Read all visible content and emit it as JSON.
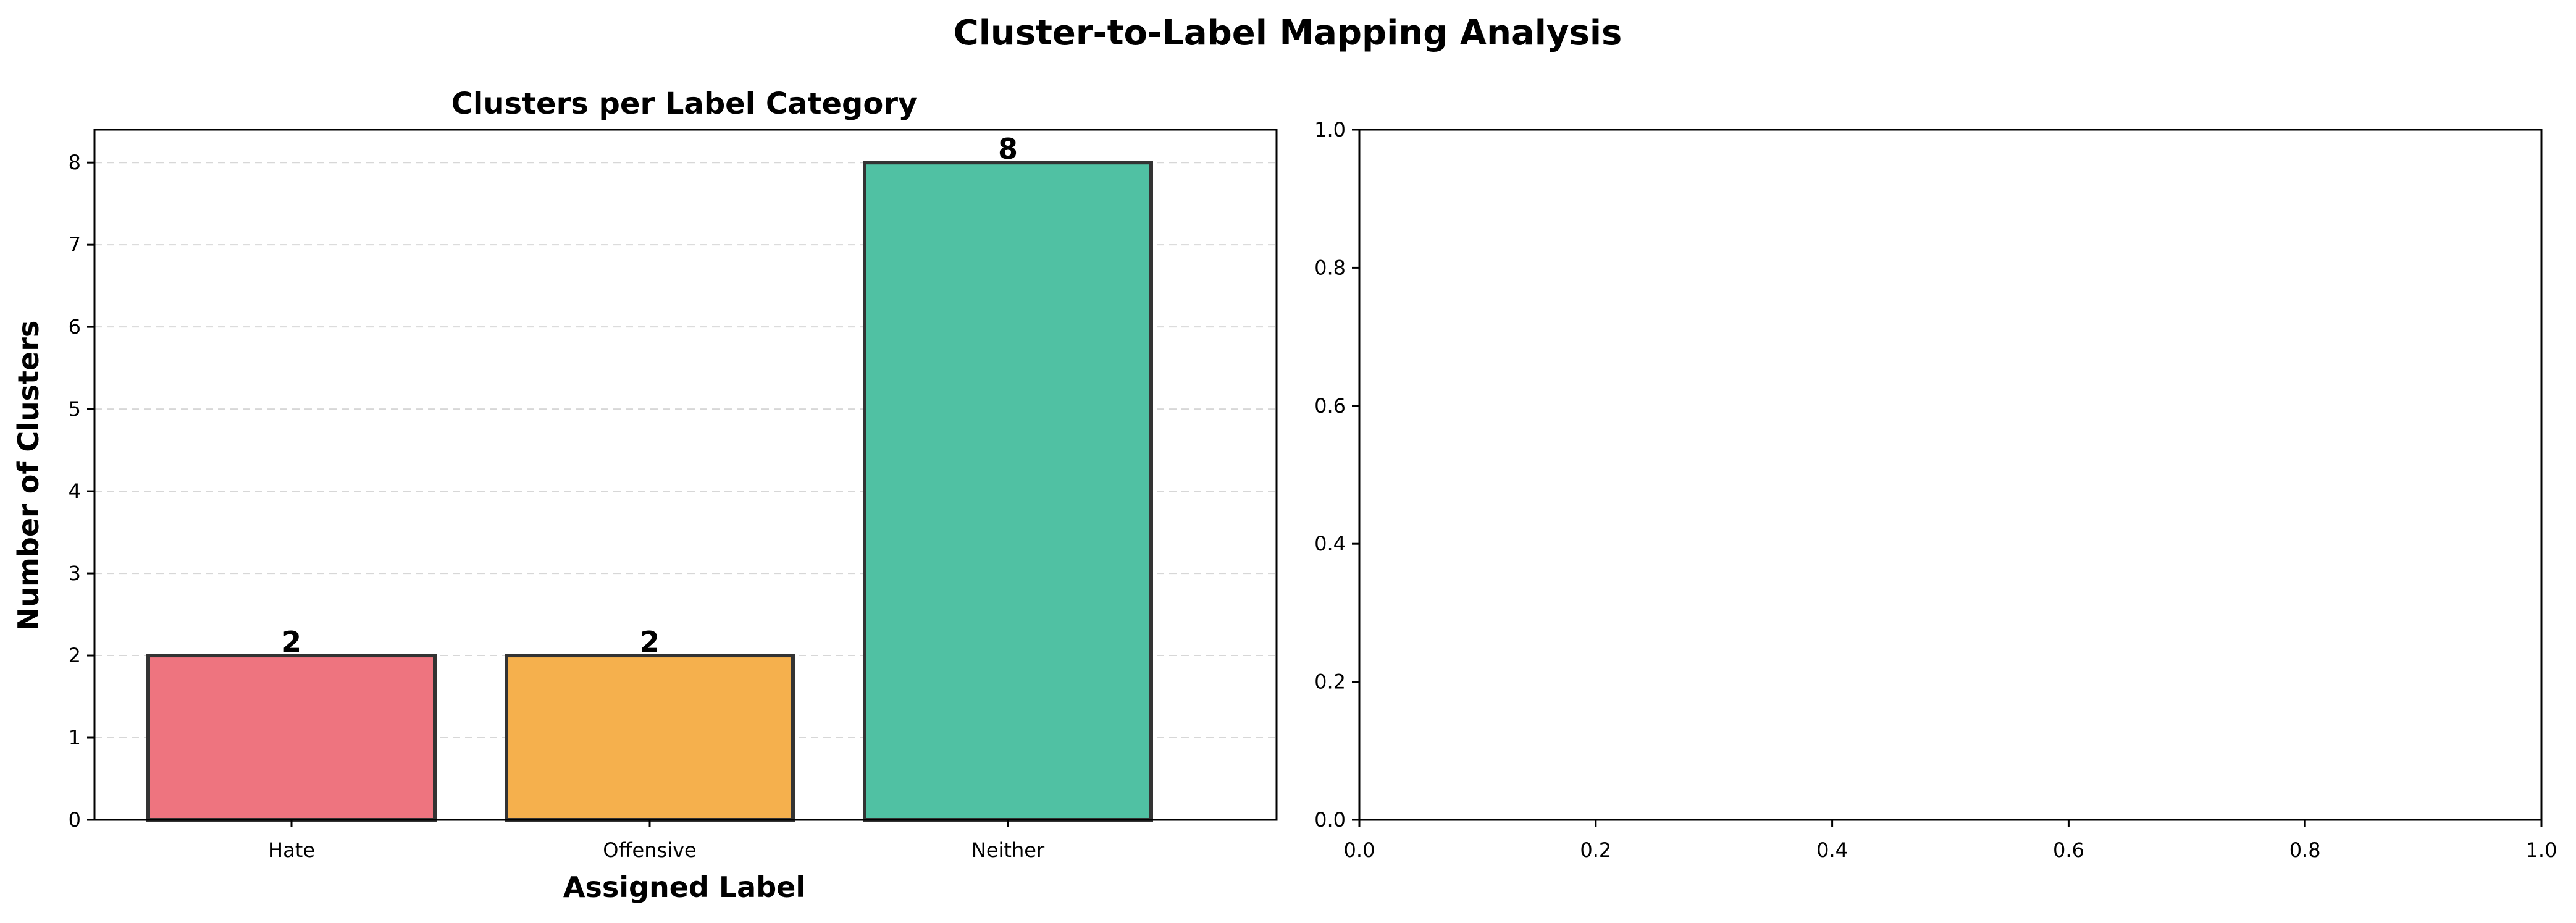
{
  "figure": {
    "suptitle": "Cluster-to-Label Mapping Analysis"
  },
  "chart_data": [
    {
      "type": "bar",
      "title": "Clusters per Label Category",
      "xlabel": "Assigned Label",
      "ylabel": "Number of Clusters",
      "categories": [
        "Hate",
        "Offensive",
        "Neither"
      ],
      "values": [
        2,
        2,
        8
      ],
      "bar_labels": [
        "2",
        "2",
        "8"
      ],
      "colors": [
        "#ee747f",
        "#f5b04d",
        "#50c1a3"
      ],
      "edge_color": "#333333",
      "ylim": [
        0,
        8.4
      ],
      "yticks": [
        0,
        1,
        2,
        3,
        4,
        5,
        6,
        7,
        8
      ],
      "grid": "y-dashed"
    },
    {
      "type": "empty",
      "title": "",
      "xlabel": "",
      "ylabel": "",
      "xlim": [
        0.0,
        1.0
      ],
      "ylim": [
        0.0,
        1.0
      ],
      "xticks": [
        "0.0",
        "0.2",
        "0.4",
        "0.6",
        "0.8",
        "1.0"
      ],
      "yticks": [
        "0.0",
        "0.2",
        "0.4",
        "0.6",
        "0.8",
        "1.0"
      ],
      "grid": "off"
    }
  ]
}
